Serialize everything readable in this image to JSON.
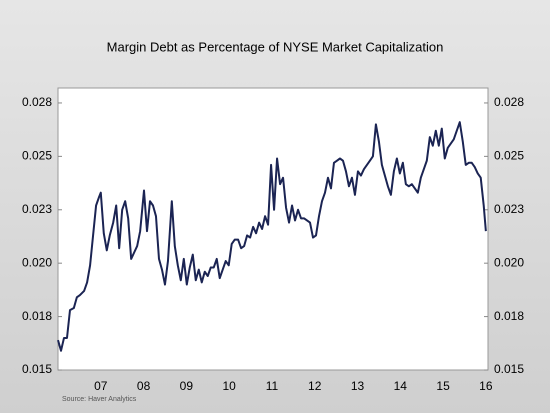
{
  "chart_data": {
    "type": "line",
    "title": "Margin Debt as Percentage of NYSE Market Capitalization",
    "source": "Source:  Haver Analytics",
    "x": [
      2006.5,
      2006.57,
      2006.64,
      2006.71,
      2006.78,
      2006.87,
      2006.94,
      2007.01,
      2007.11,
      2007.18,
      2007.25,
      2007.32,
      2007.39,
      2007.46,
      2007.5,
      2007.57,
      2007.64,
      2007.71,
      2007.79,
      2007.86,
      2007.93,
      2008.0,
      2008.07,
      2008.14,
      2008.21,
      2008.28,
      2008.35,
      2008.42,
      2008.51,
      2008.58,
      2008.65,
      2008.72,
      2008.79,
      2008.86,
      2008.93,
      2009.0,
      2009.07,
      2009.16,
      2009.23,
      2009.3,
      2009.37,
      2009.44,
      2009.51,
      2009.58,
      2009.65,
      2009.72,
      2009.79,
      2009.86,
      2009.93,
      2010.0,
      2010.07,
      2010.14,
      2010.21,
      2010.28,
      2010.35,
      2010.42,
      2010.49,
      2010.56,
      2010.63,
      2010.71,
      2010.78,
      2010.85,
      2010.92,
      2010.99,
      2011.06,
      2011.13,
      2011.2,
      2011.27,
      2011.34,
      2011.41,
      2011.48,
      2011.55,
      2011.62,
      2011.69,
      2011.76,
      2011.83,
      2011.9,
      2011.97,
      2012.04,
      2012.11,
      2012.18,
      2012.25,
      2012.32,
      2012.39,
      2012.46,
      2012.53,
      2012.6,
      2012.67,
      2012.74,
      2012.81,
      2012.88,
      2012.95,
      2013.02,
      2013.09,
      2013.16,
      2013.23,
      2013.3,
      2013.37,
      2013.44,
      2013.51,
      2013.58,
      2013.65,
      2013.72,
      2013.79,
      2013.86,
      2013.93,
      2014.0,
      2014.07,
      2014.14,
      2014.21,
      2014.28,
      2014.35,
      2014.42,
      2014.49,
      2014.56,
      2014.63,
      2014.7,
      2014.77,
      2014.84,
      2014.91,
      2014.98,
      2015.05,
      2015.12,
      2015.19,
      2015.26,
      2015.33,
      2015.4,
      2015.47,
      2015.54,
      2015.61,
      2015.68,
      2015.75,
      2015.82,
      2015.89,
      2015.96,
      2016.03,
      2016.1,
      2016.17,
      2016.24,
      2016.31,
      2016.38,
      2016.45,
      2016.5
    ],
    "series": [
      {
        "name": "Margin Debt",
        "color": "#1b2453",
        "values": [
          0.0164,
          0.0159,
          0.0165,
          0.0165,
          0.0178,
          0.0179,
          0.0184,
          0.0185,
          0.0187,
          0.0191,
          0.0199,
          0.0213,
          0.0227,
          0.0231,
          0.0233,
          0.0214,
          0.0206,
          0.0213,
          0.0219,
          0.0227,
          0.0207,
          0.0225,
          0.0229,
          0.0221,
          0.0202,
          0.0205,
          0.0208,
          0.0215,
          0.0234,
          0.0215,
          0.0229,
          0.0227,
          0.0222,
          0.0202,
          0.0197,
          0.019,
          0.0201,
          0.0229,
          0.0208,
          0.0199,
          0.0192,
          0.0202,
          0.019,
          0.0198,
          0.0204,
          0.0192,
          0.0197,
          0.0191,
          0.0196,
          0.0194,
          0.0198,
          0.0198,
          0.0202,
          0.0193,
          0.0197,
          0.0201,
          0.0199,
          0.0209,
          0.0211,
          0.0211,
          0.0207,
          0.0208,
          0.0213,
          0.0212,
          0.0217,
          0.0214,
          0.0219,
          0.0216,
          0.0222,
          0.0218,
          0.0246,
          0.0225,
          0.0249,
          0.0237,
          0.024,
          0.0226,
          0.0219,
          0.0227,
          0.022,
          0.0225,
          0.0221,
          0.0221,
          0.022,
          0.0219,
          0.0212,
          0.0213,
          0.0222,
          0.0229,
          0.0233,
          0.024,
          0.0235,
          0.0247,
          0.0248,
          0.0249,
          0.0248,
          0.0243,
          0.0236,
          0.024,
          0.0232,
          0.0243,
          0.0241,
          0.0244,
          0.0246,
          0.0248,
          0.025,
          0.0265,
          0.0257,
          0.0246,
          0.0241,
          0.0236,
          0.0232,
          0.0243,
          0.0249,
          0.0242,
          0.0247,
          0.0237,
          0.0236,
          0.0237,
          0.0235,
          0.0233,
          0.024,
          0.0244,
          0.0248,
          0.0259,
          0.0255,
          0.0262,
          0.0255,
          0.0263,
          0.0249,
          0.0254,
          0.0256,
          0.0258,
          0.0262,
          0.0266,
          0.0257,
          0.0246,
          0.0247,
          0.0247,
          0.0245,
          0.0242,
          0.024,
          0.0227,
          0.0215
        ]
      }
    ],
    "xlim": [
      2006.5,
      2016.55
    ],
    "xticks": [
      {
        "value": 2007.5,
        "label": "07"
      },
      {
        "value": 2008.5,
        "label": "08"
      },
      {
        "value": 2009.5,
        "label": "09"
      },
      {
        "value": 2010.5,
        "label": "10"
      },
      {
        "value": 2011.5,
        "label": "11"
      },
      {
        "value": 2012.5,
        "label": "12"
      },
      {
        "value": 2013.5,
        "label": "13"
      },
      {
        "value": 2014.5,
        "label": "14"
      },
      {
        "value": 2015.5,
        "label": "15"
      },
      {
        "value": 2016.5,
        "label": "16"
      }
    ],
    "ylim": [
      0.015,
      0.0282
    ],
    "yticks": [
      {
        "value": 0.015,
        "label": "0.015"
      },
      {
        "value": 0.0175,
        "label": "0.018"
      },
      {
        "value": 0.02,
        "label": "0.020"
      },
      {
        "value": 0.0225,
        "label": "0.023"
      },
      {
        "value": 0.025,
        "label": "0.025"
      },
      {
        "value": 0.0275,
        "label": "0.028"
      }
    ],
    "y2lim": [
      0.015,
      0.0282
    ],
    "y2ticks": [
      {
        "value": 0.015,
        "label": "0.015"
      },
      {
        "value": 0.0175,
        "label": "0.018"
      },
      {
        "value": 0.02,
        "label": "0.020"
      },
      {
        "value": 0.0225,
        "label": "0.023"
      },
      {
        "value": 0.025,
        "label": "0.025"
      },
      {
        "value": 0.0275,
        "label": "0.028"
      }
    ]
  }
}
